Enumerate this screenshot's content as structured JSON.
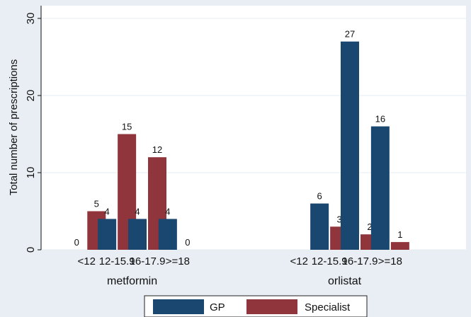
{
  "chart_data": {
    "type": "bar",
    "title": "",
    "ylabel": "Total number of prescriptions",
    "ylim": [
      0,
      30
    ],
    "yticks": [
      0,
      10,
      20,
      30
    ],
    "grid": true,
    "legend_position": "bottom",
    "groups": [
      {
        "name": "metformin",
        "categories": [
          "<12",
          "12-15.9",
          "16-17.9",
          ">=18"
        ],
        "series": [
          {
            "name": "GP",
            "values": [
              0,
              4,
              4,
              4
            ]
          },
          {
            "name": "Specialist",
            "values": [
              5,
              15,
              12,
              0
            ]
          }
        ]
      },
      {
        "name": "orlistat",
        "categories": [
          "<12",
          "12-15.9",
          "16-17.9",
          ">=18"
        ],
        "series": [
          {
            "name": "GP",
            "values": [
              null,
              6,
              27,
              16
            ]
          },
          {
            "name": "Specialist",
            "values": [
              null,
              3,
              2,
              1
            ]
          }
        ]
      }
    ],
    "legend": [
      {
        "name": "GP",
        "color": "#1a476f"
      },
      {
        "name": "Specialist",
        "color": "#90353b"
      }
    ]
  }
}
